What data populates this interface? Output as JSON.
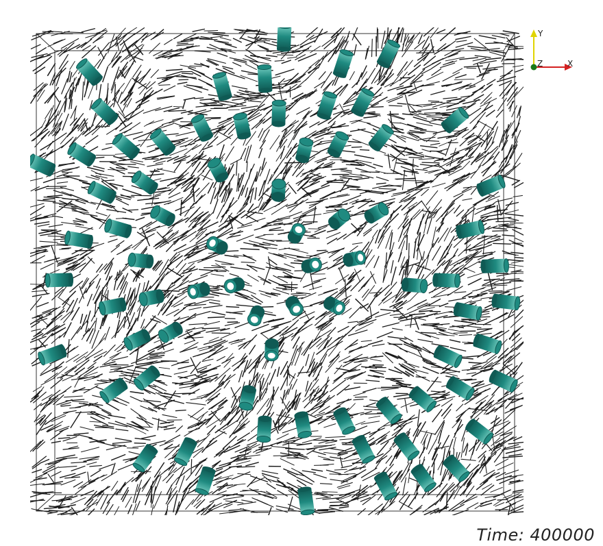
{
  "view": {
    "background_color": "#ffffff",
    "rod_color": "#1a1a1a",
    "cylinder_color": "#1f8a80",
    "cylinder_shadow_color": "#0f5a54",
    "cylinder_highlight_color": "#6fc9bd"
  },
  "orientation_axes": {
    "y_label": "Y",
    "z_label": "Z",
    "x_label": "X",
    "y_color": "#e0d400",
    "x_color": "#d42020",
    "z_color": "#1a7a1a",
    "y_icon": "y-axis-arrow-icon",
    "x_icon": "x-axis-arrow-icon",
    "z_icon": "z-axis-dot-icon"
  },
  "annotation": {
    "time_label": "Time:",
    "time_value": "400000"
  }
}
